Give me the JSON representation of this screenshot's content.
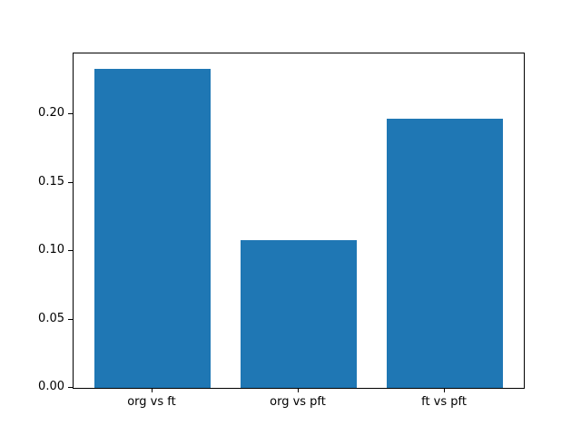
{
  "figure": {
    "background_color": "#ffffff"
  },
  "chart_data": {
    "type": "bar",
    "title": "",
    "xlabel": "",
    "ylabel": "",
    "categories": [
      "org vs ft",
      "org vs pft",
      "ft vs pft"
    ],
    "values": [
      0.233,
      0.108,
      0.197
    ],
    "bar_color": "#1f77b4",
    "bar_width_data_units": 0.8,
    "ylim": [
      0,
      0.2444
    ],
    "yticks": [
      0.0,
      0.05,
      0.1,
      0.15,
      0.2
    ],
    "ytick_labels": [
      "0.00",
      "0.05",
      "0.10",
      "0.15",
      "0.20"
    ],
    "grid": false,
    "legend_position": "none",
    "axes_box": true
  }
}
